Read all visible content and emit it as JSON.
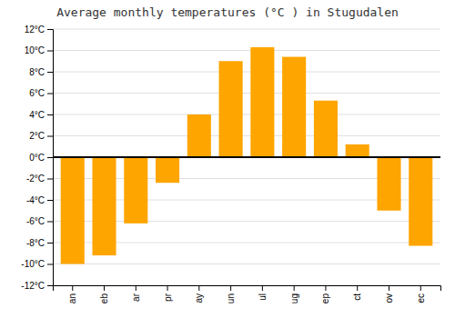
{
  "chart_data": {
    "type": "bar",
    "title": "Average monthly temperatures (°C ) in Stugudalen",
    "categories": [
      "an",
      "eb",
      "ar",
      "pr",
      "ay",
      "un",
      "ul",
      "ug",
      "ep",
      "ct",
      "ov",
      "ec"
    ],
    "values": [
      -10.0,
      -9.2,
      -6.2,
      -2.4,
      4.0,
      9.0,
      10.3,
      9.4,
      5.3,
      1.2,
      -5.0,
      -8.3
    ],
    "color": "#FFA500",
    "ylim": [
      -12,
      12
    ],
    "yticks": [
      {
        "value": -12,
        "label": "-12°C"
      },
      {
        "value": -10,
        "label": "-10°C"
      },
      {
        "value": -8,
        "label": "-8°C"
      },
      {
        "value": -6,
        "label": "-6°C"
      },
      {
        "value": -4,
        "label": "-4°C"
      },
      {
        "value": -2,
        "label": "-2°C"
      },
      {
        "value": 0,
        "label": "0°C"
      },
      {
        "value": 2,
        "label": "2°C"
      },
      {
        "value": 4,
        "label": "4°C"
      },
      {
        "value": 6,
        "label": "6°C"
      },
      {
        "value": 8,
        "label": "8°C"
      },
      {
        "value": 10,
        "label": "10°C"
      },
      {
        "value": 12,
        "label": "12°C"
      }
    ],
    "grid": true
  }
}
